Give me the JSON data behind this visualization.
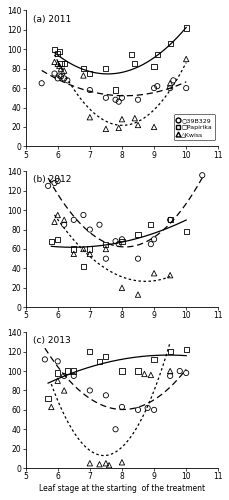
{
  "panels": [
    "(a) 2011",
    "(b) 2012",
    "(c) 2013"
  ],
  "xlabel": "Leaf stage at the starting  of the treatment",
  "xlim": [
    5,
    11
  ],
  "ylim": [
    0,
    140
  ],
  "yticks": [
    0,
    20,
    40,
    60,
    80,
    100,
    120,
    140
  ],
  "xticks": [
    5,
    6,
    7,
    8,
    9,
    10,
    11
  ],
  "data_2011": {
    "b39": {
      "x": [
        5.5,
        5.9,
        6.0,
        6.05,
        6.1,
        6.2,
        6.3,
        7.0,
        7.5,
        7.8,
        7.9,
        8.0,
        8.5,
        9.0,
        9.1,
        9.5,
        9.6,
        10.0
      ],
      "y": [
        65,
        75,
        70,
        73,
        72,
        70,
        68,
        58,
        50,
        48,
        46,
        50,
        48,
        60,
        62,
        60,
        68,
        60
      ]
    },
    "pap": {
      "x": [
        5.9,
        6.0,
        6.05,
        6.1,
        6.2,
        6.8,
        7.0,
        7.5,
        7.8,
        8.3,
        8.4,
        9.0,
        9.1,
        9.5,
        10.0
      ],
      "y": [
        100,
        96,
        98,
        85,
        85,
        80,
        75,
        80,
        58,
        95,
        85,
        82,
        95,
        106,
        122
      ]
    },
    "kw": {
      "x": [
        5.9,
        6.0,
        6.05,
        6.1,
        6.2,
        6.8,
        7.0,
        7.5,
        7.9,
        8.0,
        8.4,
        8.5,
        9.0,
        9.5,
        10.0
      ],
      "y": [
        87,
        85,
        83,
        80,
        78,
        73,
        30,
        18,
        19,
        28,
        29,
        22,
        20,
        65,
        90
      ]
    }
  },
  "data_2012": {
    "b39": {
      "x": [
        5.7,
        5.9,
        6.0,
        6.2,
        6.5,
        6.8,
        7.0,
        7.3,
        7.5,
        7.8,
        7.9,
        8.0,
        8.5,
        8.9,
        9.0,
        9.5,
        10.5
      ],
      "y": [
        125,
        128,
        130,
        85,
        90,
        95,
        80,
        85,
        50,
        68,
        65,
        70,
        50,
        65,
        70,
        90,
        136
      ]
    },
    "pap": {
      "x": [
        5.8,
        6.0,
        6.5,
        6.8,
        7.0,
        7.5,
        8.0,
        8.5,
        8.9,
        9.5,
        10.0
      ],
      "y": [
        68,
        70,
        60,
        42,
        60,
        65,
        68,
        75,
        85,
        90,
        78
      ]
    },
    "kw": {
      "x": [
        5.9,
        6.0,
        6.2,
        6.5,
        6.8,
        7.0,
        7.5,
        8.0,
        8.5,
        9.0,
        9.5
      ],
      "y": [
        88,
        95,
        90,
        55,
        60,
        55,
        60,
        20,
        13,
        35,
        33
      ]
    }
  },
  "data_2013": {
    "b39": {
      "x": [
        5.6,
        6.0,
        6.2,
        6.5,
        7.0,
        7.5,
        7.8,
        8.0,
        8.5,
        8.8,
        9.0,
        9.5,
        9.8,
        10.0
      ],
      "y": [
        112,
        110,
        95,
        95,
        80,
        75,
        40,
        63,
        60,
        62,
        60,
        95,
        100,
        98
      ]
    },
    "pap": {
      "x": [
        5.7,
        6.0,
        6.3,
        6.5,
        7.0,
        7.3,
        7.5,
        8.0,
        8.5,
        9.0,
        9.5,
        10.0
      ],
      "y": [
        72,
        98,
        100,
        100,
        120,
        110,
        115,
        100,
        100,
        112,
        120,
        122
      ]
    },
    "kw": {
      "x": [
        5.8,
        6.0,
        6.2,
        7.0,
        7.3,
        7.5,
        7.6,
        8.0,
        8.7,
        8.9,
        9.5
      ],
      "y": [
        63,
        90,
        80,
        5,
        4,
        5,
        3,
        6,
        97,
        96,
        100
      ]
    }
  },
  "line_styles": {
    "b39": "coarse_dash",
    "pap": "solid",
    "kw": "fine_dash"
  },
  "markers": {
    "b39": "o",
    "pap": "s",
    "kw": "^"
  },
  "legend_labels": [
    "39B329",
    "Papirika",
    "Kwiss"
  ]
}
